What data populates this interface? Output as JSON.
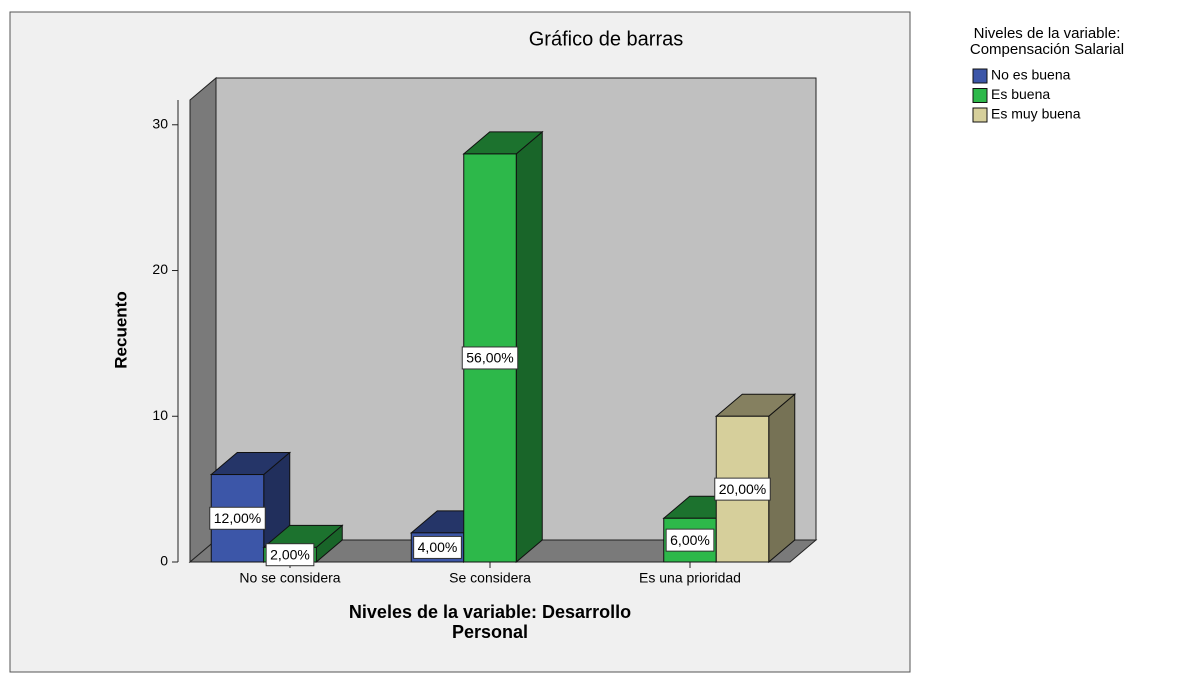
{
  "chart_data": {
    "type": "bar3d",
    "title": "Gráfico de barras",
    "y_label": "Recuento",
    "x_label": [
      "Niveles de la variable: Desarrollo",
      "Personal"
    ],
    "legend_title": [
      "Niveles de la variable:",
      "Compensación Salarial"
    ],
    "categories": [
      "No se considera",
      "Se considera",
      "Es una prioridad"
    ],
    "series": [
      {
        "name": "No es buena",
        "color": "#3c56a8",
        "values": [
          6,
          2,
          null
        ],
        "value_labels": [
          "12,00%",
          "4,00%",
          null
        ]
      },
      {
        "name": "Es buena",
        "color": "#2db84a",
        "values": [
          1,
          28,
          3
        ],
        "value_labels": [
          "2,00%",
          "56,00%",
          "6,00%"
        ]
      },
      {
        "name": "Es muy buena",
        "color": "#d6cf9b",
        "values": [
          null,
          null,
          10
        ],
        "value_labels": [
          null,
          null,
          "20,00%"
        ]
      }
    ],
    "ylim": [
      0,
      31.7
    ],
    "yticks": [
      0,
      10,
      20,
      30
    ],
    "legend": "top-right"
  }
}
